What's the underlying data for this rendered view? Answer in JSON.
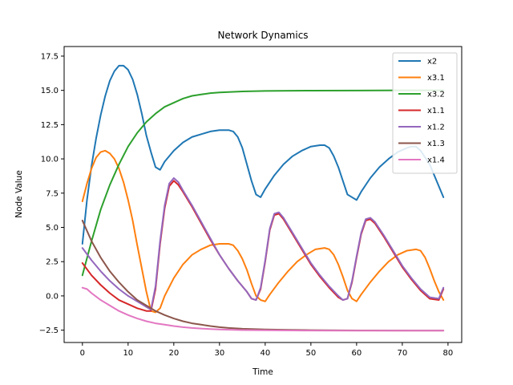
{
  "chart_data": {
    "type": "line",
    "title": "Network Dynamics",
    "xlabel": "Time",
    "ylabel": "Node Value",
    "xlim": [
      -4,
      83
    ],
    "ylim": [
      -3.4,
      18.2
    ],
    "xticks": [
      0,
      10,
      20,
      30,
      40,
      50,
      60,
      70,
      80
    ],
    "yticks": [
      -2.5,
      0.0,
      2.5,
      5.0,
      7.5,
      10.0,
      12.5,
      15.0,
      17.5
    ],
    "ytick_labels": [
      "−2.5",
      "0.0",
      "2.5",
      "5.0",
      "7.5",
      "10.0",
      "12.5",
      "15.0",
      "17.5"
    ],
    "grid": false,
    "legend_position": "upper right",
    "series": [
      {
        "name": "x2",
        "color": "#1f77b4",
        "points": [
          [
            0,
            3.8
          ],
          [
            1,
            7.0
          ],
          [
            2,
            9.5
          ],
          [
            3,
            11.5
          ],
          [
            4,
            13.2
          ],
          [
            5,
            14.6
          ],
          [
            6,
            15.7
          ],
          [
            7,
            16.4
          ],
          [
            8,
            16.8
          ],
          [
            9,
            16.8
          ],
          [
            10,
            16.5
          ],
          [
            11,
            15.8
          ],
          [
            12,
            14.7
          ],
          [
            13,
            13.3
          ],
          [
            14,
            11.7
          ],
          [
            15,
            10.5
          ],
          [
            16,
            9.4
          ],
          [
            17,
            9.2
          ],
          [
            18,
            9.8
          ],
          [
            20,
            10.6
          ],
          [
            22,
            11.2
          ],
          [
            24,
            11.6
          ],
          [
            26,
            11.8
          ],
          [
            28,
            12.0
          ],
          [
            30,
            12.1
          ],
          [
            32,
            12.1
          ],
          [
            33,
            12.0
          ],
          [
            34,
            11.6
          ],
          [
            35,
            10.8
          ],
          [
            36,
            9.6
          ],
          [
            37,
            8.4
          ],
          [
            38,
            7.4
          ],
          [
            39,
            7.2
          ],
          [
            40,
            7.8
          ],
          [
            42,
            8.8
          ],
          [
            44,
            9.6
          ],
          [
            46,
            10.2
          ],
          [
            48,
            10.6
          ],
          [
            50,
            10.9
          ],
          [
            52,
            11.0
          ],
          [
            53,
            11.0
          ],
          [
            54,
            10.8
          ],
          [
            55,
            10.2
          ],
          [
            56,
            9.4
          ],
          [
            57,
            8.4
          ],
          [
            58,
            7.4
          ],
          [
            59,
            7.2
          ],
          [
            60,
            7.0
          ],
          [
            61,
            7.6
          ],
          [
            63,
            8.6
          ],
          [
            65,
            9.4
          ],
          [
            67,
            10.0
          ],
          [
            69,
            10.5
          ],
          [
            71,
            10.8
          ],
          [
            72,
            10.9
          ],
          [
            73,
            10.9
          ],
          [
            74,
            10.6
          ],
          [
            76,
            9.6
          ],
          [
            78,
            8.0
          ],
          [
            79,
            7.2
          ]
        ]
      },
      {
        "name": "x3.1",
        "color": "#ff7f0e",
        "points": [
          [
            0,
            6.9
          ],
          [
            1,
            8.2
          ],
          [
            2,
            9.3
          ],
          [
            3,
            10.1
          ],
          [
            4,
            10.5
          ],
          [
            5,
            10.6
          ],
          [
            6,
            10.4
          ],
          [
            7,
            10.0
          ],
          [
            8,
            9.3
          ],
          [
            9,
            8.3
          ],
          [
            10,
            7.0
          ],
          [
            11,
            5.5
          ],
          [
            12,
            3.7
          ],
          [
            13,
            2.0
          ],
          [
            14,
            0.3
          ],
          [
            15,
            -1.1
          ],
          [
            16,
            -1.2
          ],
          [
            17,
            -0.9
          ],
          [
            18,
            0.0
          ],
          [
            20,
            1.3
          ],
          [
            22,
            2.3
          ],
          [
            24,
            3.0
          ],
          [
            26,
            3.4
          ],
          [
            28,
            3.7
          ],
          [
            30,
            3.8
          ],
          [
            32,
            3.8
          ],
          [
            33,
            3.7
          ],
          [
            34,
            3.3
          ],
          [
            35,
            2.7
          ],
          [
            36,
            1.9
          ],
          [
            37,
            0.9
          ],
          [
            38,
            0.0
          ],
          [
            39,
            -0.3
          ],
          [
            40,
            -0.4
          ],
          [
            41,
            0.1
          ],
          [
            43,
            1.0
          ],
          [
            45,
            1.8
          ],
          [
            47,
            2.5
          ],
          [
            49,
            3.0
          ],
          [
            51,
            3.4
          ],
          [
            53,
            3.5
          ],
          [
            54,
            3.4
          ],
          [
            55,
            3.0
          ],
          [
            56,
            2.3
          ],
          [
            57,
            1.4
          ],
          [
            58,
            0.4
          ],
          [
            59,
            -0.2
          ],
          [
            60,
            -0.4
          ],
          [
            61,
            0.1
          ],
          [
            63,
            1.0
          ],
          [
            65,
            1.8
          ],
          [
            67,
            2.5
          ],
          [
            69,
            3.0
          ],
          [
            71,
            3.3
          ],
          [
            73,
            3.4
          ],
          [
            74,
            3.3
          ],
          [
            75,
            2.8
          ],
          [
            76,
            2.0
          ],
          [
            77,
            1.1
          ],
          [
            78,
            0.3
          ],
          [
            79,
            -0.3
          ]
        ]
      },
      {
        "name": "x3.2",
        "color": "#2ca02c",
        "points": [
          [
            0,
            1.5
          ],
          [
            2,
            4.0
          ],
          [
            4,
            6.3
          ],
          [
            6,
            8.1
          ],
          [
            8,
            9.6
          ],
          [
            10,
            10.9
          ],
          [
            12,
            11.9
          ],
          [
            14,
            12.7
          ],
          [
            16,
            13.3
          ],
          [
            18,
            13.8
          ],
          [
            20,
            14.1
          ],
          [
            22,
            14.4
          ],
          [
            24,
            14.6
          ],
          [
            26,
            14.7
          ],
          [
            28,
            14.8
          ],
          [
            30,
            14.85
          ],
          [
            35,
            14.92
          ],
          [
            40,
            14.96
          ],
          [
            50,
            14.98
          ],
          [
            60,
            14.99
          ],
          [
            70,
            15.0
          ],
          [
            79,
            15.0
          ]
        ]
      },
      {
        "name": "x1.1",
        "color": "#d62728",
        "points": [
          [
            0,
            2.4
          ],
          [
            2,
            1.5
          ],
          [
            4,
            0.8
          ],
          [
            6,
            0.2
          ],
          [
            8,
            -0.3
          ],
          [
            10,
            -0.6
          ],
          [
            12,
            -0.9
          ],
          [
            14,
            -1.1
          ],
          [
            15,
            -1.1
          ],
          [
            16,
            0.5
          ],
          [
            17,
            3.8
          ],
          [
            18,
            6.4
          ],
          [
            19,
            8.0
          ],
          [
            20,
            8.4
          ],
          [
            21,
            8.1
          ],
          [
            22,
            7.6
          ],
          [
            24,
            6.5
          ],
          [
            26,
            5.3
          ],
          [
            28,
            4.1
          ],
          [
            30,
            3.0
          ],
          [
            32,
            2.0
          ],
          [
            34,
            1.1
          ],
          [
            36,
            0.3
          ],
          [
            37,
            -0.2
          ],
          [
            38,
            -0.3
          ],
          [
            39,
            0.5
          ],
          [
            40,
            2.5
          ],
          [
            41,
            4.8
          ],
          [
            42,
            5.9
          ],
          [
            43,
            6.0
          ],
          [
            44,
            5.6
          ],
          [
            46,
            4.5
          ],
          [
            48,
            3.4
          ],
          [
            50,
            2.3
          ],
          [
            52,
            1.4
          ],
          [
            54,
            0.6
          ],
          [
            56,
            -0.1
          ],
          [
            57,
            -0.3
          ],
          [
            58,
            -0.2
          ],
          [
            59,
            1.0
          ],
          [
            60,
            2.8
          ],
          [
            61,
            4.5
          ],
          [
            62,
            5.5
          ],
          [
            63,
            5.6
          ],
          [
            64,
            5.3
          ],
          [
            66,
            4.3
          ],
          [
            68,
            3.2
          ],
          [
            70,
            2.1
          ],
          [
            72,
            1.2
          ],
          [
            74,
            0.4
          ],
          [
            76,
            -0.2
          ],
          [
            78,
            -0.3
          ],
          [
            79,
            0.5
          ]
        ]
      },
      {
        "name": "x1.2",
        "color": "#9467bd",
        "points": [
          [
            0,
            3.5
          ],
          [
            2,
            2.6
          ],
          [
            4,
            1.8
          ],
          [
            6,
            1.1
          ],
          [
            8,
            0.5
          ],
          [
            10,
            0.0
          ],
          [
            12,
            -0.4
          ],
          [
            14,
            -0.8
          ],
          [
            15,
            -1.0
          ],
          [
            16,
            0.7
          ],
          [
            17,
            4.0
          ],
          [
            18,
            6.6
          ],
          [
            19,
            8.2
          ],
          [
            20,
            8.6
          ],
          [
            21,
            8.3
          ],
          [
            22,
            7.7
          ],
          [
            24,
            6.6
          ],
          [
            26,
            5.4
          ],
          [
            28,
            4.2
          ],
          [
            30,
            3.0
          ],
          [
            32,
            2.0
          ],
          [
            34,
            1.1
          ],
          [
            36,
            0.3
          ],
          [
            37,
            -0.2
          ],
          [
            38,
            -0.3
          ],
          [
            39,
            0.6
          ],
          [
            40,
            2.6
          ],
          [
            41,
            4.9
          ],
          [
            42,
            6.0
          ],
          [
            43,
            6.1
          ],
          [
            44,
            5.7
          ],
          [
            46,
            4.6
          ],
          [
            48,
            3.5
          ],
          [
            50,
            2.4
          ],
          [
            52,
            1.5
          ],
          [
            54,
            0.7
          ],
          [
            56,
            0.0
          ],
          [
            57,
            -0.3
          ],
          [
            58,
            -0.2
          ],
          [
            59,
            1.1
          ],
          [
            60,
            2.9
          ],
          [
            61,
            4.6
          ],
          [
            62,
            5.6
          ],
          [
            63,
            5.7
          ],
          [
            64,
            5.4
          ],
          [
            66,
            4.4
          ],
          [
            68,
            3.3
          ],
          [
            70,
            2.2
          ],
          [
            72,
            1.3
          ],
          [
            74,
            0.5
          ],
          [
            76,
            -0.1
          ],
          [
            78,
            -0.2
          ],
          [
            79,
            0.6
          ]
        ]
      },
      {
        "name": "x1.3",
        "color": "#8c564b",
        "points": [
          [
            0,
            5.5
          ],
          [
            2,
            4.0
          ],
          [
            4,
            2.8
          ],
          [
            6,
            1.8
          ],
          [
            8,
            1.0
          ],
          [
            10,
            0.3
          ],
          [
            12,
            -0.3
          ],
          [
            14,
            -0.7
          ],
          [
            16,
            -1.1
          ],
          [
            18,
            -1.4
          ],
          [
            20,
            -1.65
          ],
          [
            22,
            -1.85
          ],
          [
            24,
            -2.0
          ],
          [
            26,
            -2.1
          ],
          [
            28,
            -2.2
          ],
          [
            30,
            -2.28
          ],
          [
            32,
            -2.34
          ],
          [
            35,
            -2.4
          ],
          [
            40,
            -2.45
          ],
          [
            45,
            -2.48
          ],
          [
            50,
            -2.5
          ],
          [
            60,
            -2.52
          ],
          [
            70,
            -2.53
          ],
          [
            79,
            -2.53
          ]
        ]
      },
      {
        "name": "x1.4",
        "color": "#e377c2",
        "points": [
          [
            0,
            0.6
          ],
          [
            1,
            0.5
          ],
          [
            2,
            0.2
          ],
          [
            4,
            -0.3
          ],
          [
            6,
            -0.7
          ],
          [
            8,
            -1.1
          ],
          [
            10,
            -1.4
          ],
          [
            12,
            -1.65
          ],
          [
            14,
            -1.85
          ],
          [
            16,
            -2.0
          ],
          [
            18,
            -2.1
          ],
          [
            20,
            -2.2
          ],
          [
            22,
            -2.28
          ],
          [
            24,
            -2.34
          ],
          [
            26,
            -2.38
          ],
          [
            28,
            -2.42
          ],
          [
            30,
            -2.45
          ],
          [
            35,
            -2.49
          ],
          [
            40,
            -2.51
          ],
          [
            50,
            -2.53
          ],
          [
            60,
            -2.54
          ],
          [
            79,
            -2.54
          ]
        ]
      }
    ]
  }
}
